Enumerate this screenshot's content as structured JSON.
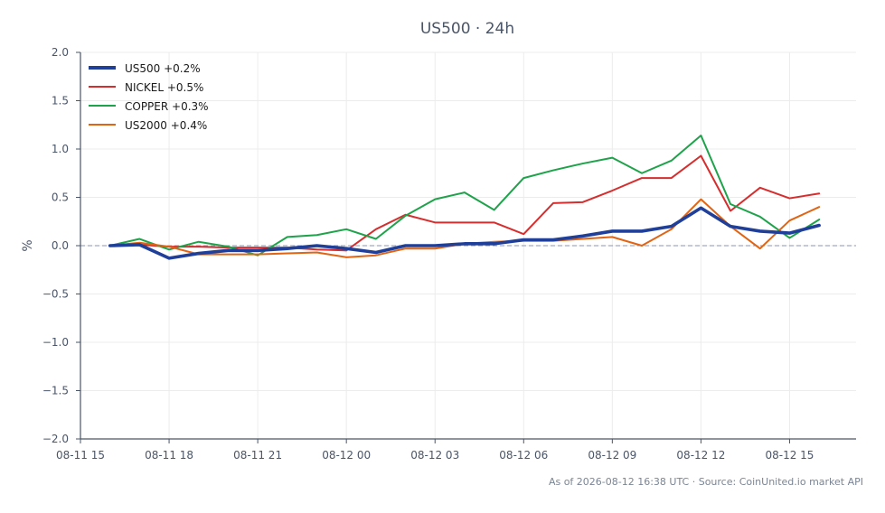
{
  "chart_data": {
    "type": "line",
    "title": "US500 · 24h",
    "ylabel": "%",
    "xlabel": "",
    "ylim": [
      -2.0,
      2.0
    ],
    "yticks": [
      -2.0,
      -1.5,
      -1.0,
      -0.5,
      0.0,
      0.5,
      1.0,
      1.5,
      2.0
    ],
    "ytick_labels": [
      "−2.0",
      "−1.5",
      "−1.0",
      "−0.5",
      "0.0",
      "0.5",
      "1.0",
      "1.5",
      "2.0"
    ],
    "xlim": [
      "08-11 15:00",
      "08-12 17:15"
    ],
    "xticks": [
      "08-11 15",
      "08-11 18",
      "08-11 21",
      "08-12 00",
      "08-12 03",
      "08-12 06",
      "08-12 09",
      "08-12 12",
      "08-12 15"
    ],
    "grid": true,
    "zero_line": true,
    "legend_position": "top-left",
    "x": [
      "08-11 16:00",
      "08-11 17:00",
      "08-11 18:00",
      "08-11 19:00",
      "08-11 20:00",
      "08-11 21:00",
      "08-11 22:00",
      "08-11 23:00",
      "08-12 00:00",
      "08-12 01:00",
      "08-12 02:00",
      "08-12 03:00",
      "08-12 04:00",
      "08-12 05:00",
      "08-12 06:00",
      "08-12 07:00",
      "08-12 08:00",
      "08-12 09:00",
      "08-12 10:00",
      "08-12 11:00",
      "08-12 12:00",
      "08-12 13:00",
      "08-12 14:00",
      "08-12 15:00",
      "08-12 16:00"
    ],
    "series": [
      {
        "name": "US500 +0.2%",
        "color": "#1f3f99",
        "emphasis": true,
        "values": [
          0.0,
          0.01,
          -0.13,
          -0.08,
          -0.05,
          -0.05,
          -0.03,
          0.0,
          -0.03,
          -0.07,
          0.0,
          0.0,
          0.02,
          0.02,
          0.06,
          0.06,
          0.1,
          0.15,
          0.15,
          0.2,
          0.39,
          0.2,
          0.15,
          0.13,
          0.21
        ]
      },
      {
        "name": "NICKEL +0.5%",
        "color": "#d62e2e",
        "values": [
          0.0,
          0.01,
          -0.01,
          -0.01,
          -0.02,
          -0.02,
          -0.02,
          -0.04,
          -0.05,
          0.17,
          0.32,
          0.24,
          0.24,
          0.24,
          0.12,
          0.44,
          0.45,
          0.57,
          0.7,
          0.7,
          0.93,
          0.36,
          0.6,
          0.49,
          0.54
        ]
      },
      {
        "name": "COPPER +0.3%",
        "color": "#1ea34a",
        "values": [
          0.0,
          0.07,
          -0.04,
          0.04,
          -0.01,
          -0.1,
          0.09,
          0.11,
          0.17,
          0.07,
          0.31,
          0.48,
          0.55,
          0.37,
          0.7,
          0.78,
          0.85,
          0.91,
          0.75,
          0.88,
          1.14,
          0.43,
          0.3,
          0.08,
          0.27
        ]
      },
      {
        "name": "US2000 +0.4%",
        "color": "#e06414",
        "values": [
          0.0,
          0.03,
          -0.01,
          -0.09,
          -0.09,
          -0.09,
          -0.08,
          -0.07,
          -0.12,
          -0.1,
          -0.03,
          -0.03,
          0.02,
          0.04,
          0.05,
          0.05,
          0.07,
          0.09,
          0.0,
          0.17,
          0.48,
          0.2,
          -0.03,
          0.26,
          0.4
        ]
      }
    ]
  },
  "footer": {
    "source": "As of 2026-08-12 16:38 UTC · Source: CoinUnited.io market API"
  }
}
